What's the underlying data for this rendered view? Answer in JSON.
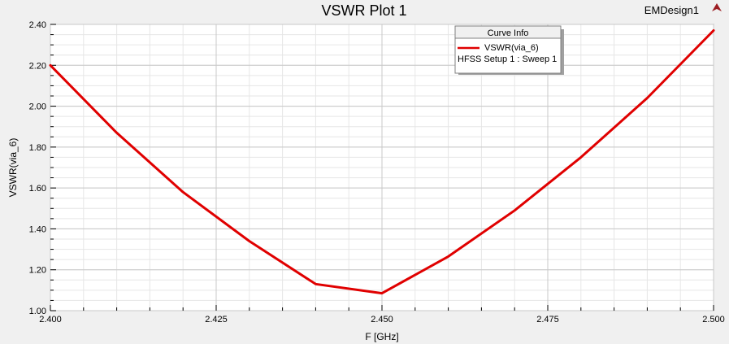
{
  "window": {
    "title": "VSWR Plot 1",
    "design_name": "EMDesign1",
    "logo_icon": "ansys-logo-icon"
  },
  "legend": {
    "header": "Curve Info",
    "entries": [
      {
        "name": "VSWR(via_6)",
        "detail": "HFSS Setup 1 : Sweep 1",
        "color": "#e00000"
      }
    ]
  },
  "chart_data": {
    "type": "line",
    "title": "VSWR Plot 1",
    "xlabel": "F [GHz]",
    "ylabel": "VSWR(via_6)",
    "xlim": [
      2.4,
      2.5
    ],
    "ylim": [
      1.0,
      2.4
    ],
    "x_ticks": [
      "2.400",
      "2.425",
      "2.450",
      "2.475",
      "2.500"
    ],
    "y_ticks": [
      "1.00",
      "1.20",
      "1.40",
      "1.60",
      "1.80",
      "2.00",
      "2.20",
      "2.40"
    ],
    "grid": true,
    "legend_position": "top-center",
    "series": [
      {
        "name": "VSWR(via_6)",
        "color": "#e00000",
        "x": [
          2.4,
          2.41,
          2.42,
          2.43,
          2.44,
          2.45,
          2.46,
          2.47,
          2.48,
          2.49,
          2.5
        ],
        "y": [
          2.2,
          1.87,
          1.58,
          1.34,
          1.13,
          1.085,
          1.265,
          1.49,
          1.75,
          2.04,
          2.37
        ]
      }
    ]
  }
}
